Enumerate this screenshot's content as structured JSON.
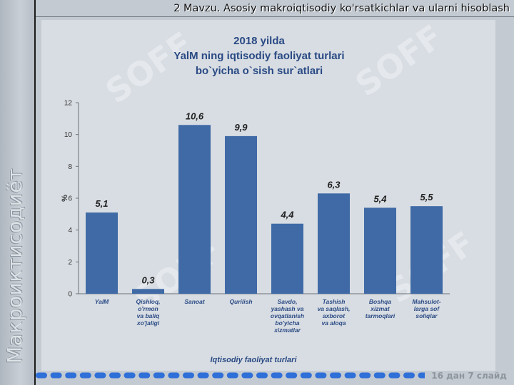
{
  "slide": {
    "title": "2 Mavzu. Asosiy makroiqtisodiy  ko'rsatkichlar va ularni hisoblash",
    "side_text": "Макроиктисодиёт",
    "watermark": "SOFF",
    "slide_number": "16 дан 7 слайд",
    "colors": {
      "background": "#c3cad2",
      "bar": "#3f6aa6",
      "dots": "#2f6fd8"
    }
  },
  "chart_data": {
    "type": "bar",
    "title_lines": [
      "2018 yilda",
      "YalM ning iqtisodiy faoliyat turlari",
      "bo`yicha o`sish sur`atlari"
    ],
    "categories": [
      [
        "YalM"
      ],
      [
        "Qishloq,",
        "o'rmon",
        "va baliq",
        "xo'jaligi"
      ],
      [
        "Sanoat"
      ],
      [
        "Qurilish"
      ],
      [
        "Savdo,",
        "yashash va",
        "ovqatlanish",
        "bo'yicha",
        "xizmatlar"
      ],
      [
        "Tashish",
        "va saqlash,",
        "axborot",
        "va aloqa"
      ],
      [
        "Boshqa",
        "xizmat",
        "tarmoqlari"
      ],
      [
        "Mahsulot-",
        "larga sof",
        "soliqlar"
      ]
    ],
    "values": [
      5.1,
      0.3,
      10.6,
      9.9,
      4.4,
      6.3,
      5.4,
      5.5
    ],
    "value_labels": [
      "5,1",
      "0,3",
      "10,6",
      "9,9",
      "4,4",
      "6,3",
      "5,4",
      "5,5"
    ],
    "xlabel": "Iqtisodiy faoliyat turlari",
    "ylabel": "%",
    "ylim": [
      0,
      12
    ],
    "yticks": [
      0,
      2,
      4,
      6,
      8,
      10,
      12
    ],
    "grid": false,
    "legend": "none"
  }
}
